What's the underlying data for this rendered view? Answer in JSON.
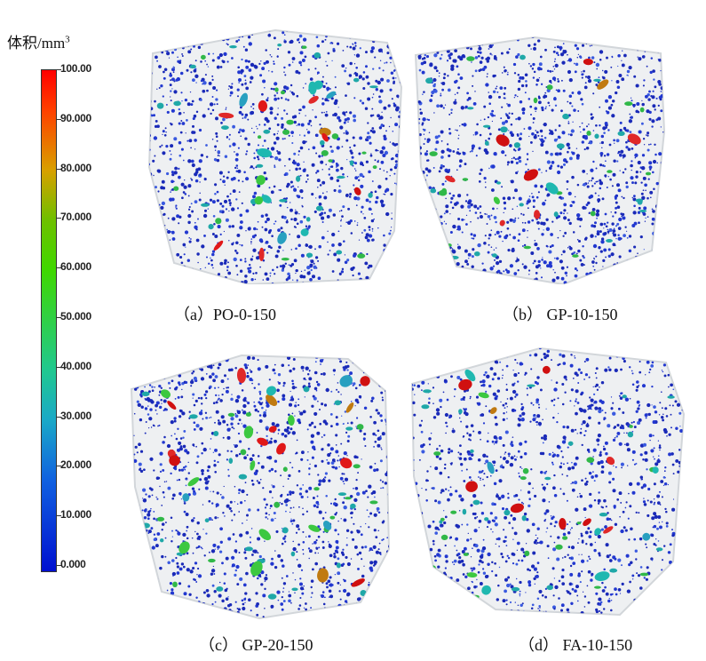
{
  "legend": {
    "title": "体积/mm",
    "title_sup": "3",
    "ticks": [
      "100.00",
      "90.000",
      "80.000",
      "70.000",
      "60.000",
      "50.000",
      "40.000",
      "30.000",
      "20.000",
      "10.000",
      "0.000"
    ]
  },
  "panels": [
    {
      "caption": "（a）PO-0-150"
    },
    {
      "caption": "（b） GP-10-150"
    },
    {
      "caption": "（c） GP-20-150"
    },
    {
      "caption": "（d） FA-10-150"
    }
  ]
}
